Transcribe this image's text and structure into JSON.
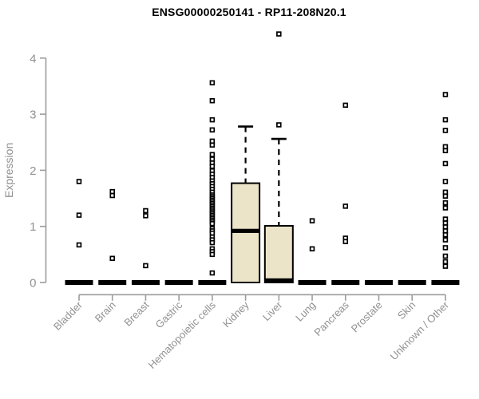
{
  "chart_data": {
    "type": "boxplot",
    "title": "ENSG00000250141 - RP11-208N20.1",
    "ylabel": "Expression",
    "xlabel": "",
    "ylim": [
      0,
      4
    ],
    "yticks": [
      0,
      1,
      2,
      3,
      4
    ],
    "grid": false,
    "legend": "none",
    "categories": [
      "Bladder",
      "Brain",
      "Breast",
      "Gastric",
      "Hematopoietic cells",
      "Kidney",
      "Liver",
      "Lung",
      "Pancreas",
      "Prostate",
      "Skin",
      "Unknown / Other"
    ],
    "boxes": [
      {
        "category": "Bladder",
        "q1": 0,
        "median": 0,
        "q3": 0,
        "whisker_low": 0,
        "whisker_high": 0,
        "outliers": [
          1.8,
          1.2,
          0.67
        ]
      },
      {
        "category": "Brain",
        "q1": 0,
        "median": 0,
        "q3": 0,
        "whisker_low": 0,
        "whisker_high": 0,
        "outliers": [
          1.62,
          1.55,
          0.43
        ]
      },
      {
        "category": "Breast",
        "q1": 0,
        "median": 0,
        "q3": 0,
        "whisker_low": 0,
        "whisker_high": 0,
        "outliers": [
          1.28,
          1.19,
          0.3
        ]
      },
      {
        "category": "Gastric",
        "q1": 0,
        "median": 0,
        "q3": 0,
        "whisker_low": 0,
        "whisker_high": 0,
        "outliers": []
      },
      {
        "category": "Hematopoietic cells",
        "q1": 0,
        "median": 0,
        "q3": 0,
        "whisker_low": 0,
        "whisker_high": 0,
        "outliers": [
          3.56,
          3.24,
          2.9,
          2.72,
          2.52,
          2.45,
          2.28,
          2.2,
          2.13,
          2.07,
          1.99,
          1.93,
          1.87,
          1.81,
          1.76,
          1.71,
          1.66,
          1.61,
          1.56,
          1.53,
          1.5,
          1.47,
          1.44,
          1.41,
          1.38,
          1.35,
          1.32,
          1.29,
          1.26,
          1.23,
          1.2,
          1.17,
          1.14,
          1.11,
          1.08,
          1.05,
          0.96,
          0.92,
          0.88,
          0.81,
          0.76,
          0.71,
          0.6,
          0.55,
          0.5,
          0.17
        ]
      },
      {
        "category": "Kidney",
        "q1": 0,
        "median": 0.92,
        "q3": 1.77,
        "whisker_low": 0,
        "whisker_high": 2.78,
        "outliers": []
      },
      {
        "category": "Liver",
        "q1": 0,
        "median": 0,
        "q3": 1.01,
        "whisker_low": 0,
        "whisker_high": 2.56,
        "outliers": [
          4.43,
          2.81
        ]
      },
      {
        "category": "Lung",
        "q1": 0,
        "median": 0,
        "q3": 0,
        "whisker_low": 0,
        "whisker_high": 0,
        "outliers": [
          1.1,
          0.6
        ]
      },
      {
        "category": "Pancreas",
        "q1": 0,
        "median": 0,
        "q3": 0,
        "whisker_low": 0,
        "whisker_high": 0,
        "outliers": [
          3.16,
          1.36,
          0.79,
          0.73
        ]
      },
      {
        "category": "Prostate",
        "q1": 0,
        "median": 0,
        "q3": 0,
        "whisker_low": 0,
        "whisker_high": 0,
        "outliers": []
      },
      {
        "category": "Skin",
        "q1": 0,
        "median": 0,
        "q3": 0,
        "whisker_low": 0,
        "whisker_high": 0,
        "outliers": []
      },
      {
        "category": "Unknown / Other",
        "q1": 0,
        "median": 0,
        "q3": 0,
        "whisker_low": 0,
        "whisker_high": 0,
        "outliers": [
          3.35,
          2.9,
          2.71,
          2.42,
          2.35,
          2.12,
          1.8,
          1.61,
          1.54,
          1.42,
          1.33,
          1.13,
          1.06,
          0.99,
          0.92,
          0.85,
          0.76,
          0.62,
          0.47,
          0.37,
          0.29
        ]
      }
    ]
  },
  "colors": {
    "box_fill": "#EBE4C8",
    "box_stroke": "#000000",
    "median": "#000000",
    "whisker": "#000000",
    "axis": "#9C9C9C",
    "tick_label": "#919191",
    "title": "#000000",
    "background": "#FFFFFF"
  }
}
